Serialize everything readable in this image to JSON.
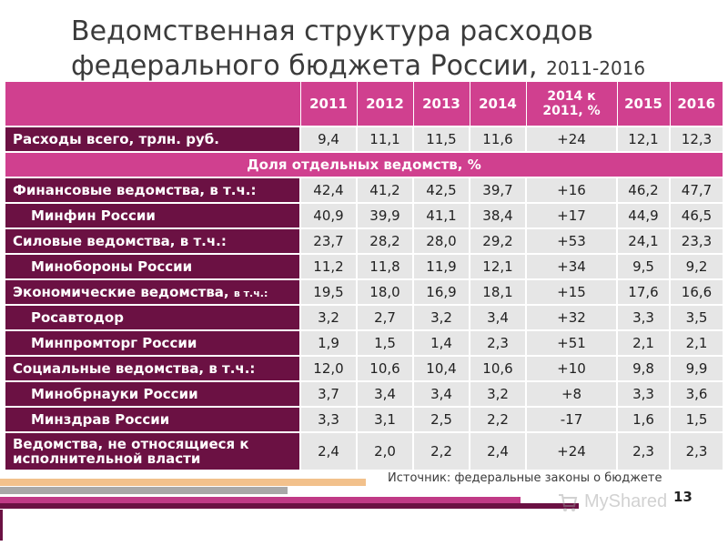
{
  "slide": {
    "title_line1": "Ведомственная структура расходов",
    "title_line2": "федерального бюджета России,",
    "title_years": "2011-2016",
    "page_number": "13",
    "source_note": "Источник: федеральные законы о бюджете",
    "watermark": "MyShared"
  },
  "table": {
    "header": {
      "y2011": "2011",
      "y2012": "2012",
      "y2013": "2013",
      "y2014": "2014",
      "change": "2014 к 2011, %",
      "y2015": "2015",
      "y2016": "2016"
    },
    "total": {
      "label": "Расходы всего, трлн. руб.",
      "values": [
        "9,4",
        "11,1",
        "11,5",
        "11,6",
        "+24",
        "12,1",
        "12,3"
      ]
    },
    "section": "Доля отдельных ведомств, %",
    "rows": [
      {
        "label": "Финансовые ведомства, в т.ч.:",
        "values": [
          "42,4",
          "41,2",
          "42,5",
          "39,7",
          "+16",
          "46,2",
          "47,7"
        ]
      },
      {
        "label": "Минфин России",
        "values": [
          "40,9",
          "39,9",
          "41,1",
          "38,4",
          "+17",
          "44,9",
          "46,5"
        ]
      },
      {
        "label": "Силовые ведомства, в т.ч.:",
        "values": [
          "23,7",
          "28,2",
          "28,0",
          "29,2",
          "+53",
          "24,1",
          "23,3"
        ]
      },
      {
        "label": "Минобороны России",
        "values": [
          "11,2",
          "11,8",
          "11,9",
          "12,1",
          "+34",
          "9,5",
          "9,2"
        ]
      },
      {
        "label": "Экономические ведомства,",
        "label_suffix": "в т.ч.:",
        "values": [
          "19,5",
          "18,0",
          "16,9",
          "18,1",
          "+15",
          "17,6",
          "16,6"
        ]
      },
      {
        "label": "Росавтодор",
        "values": [
          "3,2",
          "2,7",
          "3,2",
          "3,4",
          "+32",
          "3,3",
          "3,5"
        ]
      },
      {
        "label": "Минпромторг России",
        "values": [
          "1,9",
          "1,5",
          "1,4",
          "2,3",
          "+51",
          "2,1",
          "2,1"
        ]
      },
      {
        "label": "Социальные ведомства, в т.ч.:",
        "values": [
          "12,0",
          "10,6",
          "10,4",
          "10,6",
          "+10",
          "9,8",
          "9,9"
        ]
      },
      {
        "label": "Минобрнауки России",
        "values": [
          "3,7",
          "3,4",
          "3,4",
          "3,2",
          "+8",
          "3,3",
          "3,6"
        ]
      },
      {
        "label": "Минздрав России",
        "values": [
          "3,3",
          "3,1",
          "2,5",
          "2,2",
          "-17",
          "1,6",
          "1,5"
        ]
      },
      {
        "label": "Ведомства, не относящиеся к исполнительной власти",
        "values": [
          "2,4",
          "2,0",
          "2,2",
          "2,4",
          "+24",
          "2,3",
          "2,3"
        ]
      }
    ]
  },
  "colors": {
    "header_magenta": "#d0408f",
    "row_label_plum": "#6b1143",
    "cell_grey": "#e6e6e6",
    "title_text": "#3b3b3b"
  }
}
